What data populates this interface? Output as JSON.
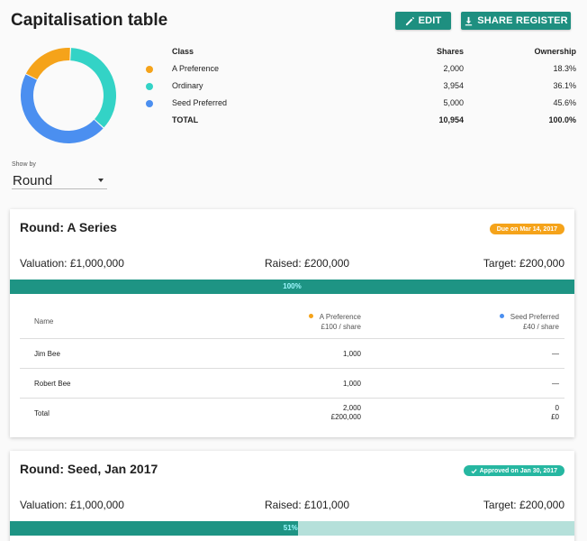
{
  "header": {
    "title": "Capitalisation table",
    "edit_label": "EDIT",
    "share_label": "SHARE REGISTER"
  },
  "cap_table": {
    "headers": {
      "class": "Class",
      "shares": "Shares",
      "ownership": "Ownership"
    },
    "rows": [
      {
        "class": "A Preference",
        "shares": "2,000",
        "ownership": "18.3%",
        "color": "#f5a31a"
      },
      {
        "class": "Ordinary",
        "shares": "3,954",
        "ownership": "36.1%",
        "color": "#33d3c6"
      },
      {
        "class": "Seed Preferred",
        "shares": "5,000",
        "ownership": "45.6%",
        "color": "#4b8ff0"
      }
    ],
    "total": {
      "class": "TOTAL",
      "shares": "10,954",
      "ownership": "100.0%"
    }
  },
  "chart_data": {
    "type": "pie",
    "categories": [
      "A Preference",
      "Ordinary",
      "Seed Preferred"
    ],
    "values": [
      18.3,
      36.1,
      45.6
    ],
    "colors": [
      "#f5a31a",
      "#33d3c6",
      "#4b8ff0"
    ]
  },
  "show_by": {
    "label": "Show by",
    "value": "Round"
  },
  "rounds": [
    {
      "title": "Round: A Series",
      "badge": "Due on Mar 14, 2017",
      "valuation": "Valuation: £1,000,000",
      "raised": "Raised: £200,000",
      "target": "Target: £200,000",
      "progress_label": "100%",
      "progress": 1.0,
      "columns": {
        "name": "Name",
        "a_class": "A Preference",
        "a_price": "£100 / share",
        "b_class": "Seed Preferred",
        "b_price": "£40 / share"
      },
      "investors": [
        {
          "name": "Jim Bee",
          "a": "1,000",
          "b": "—"
        },
        {
          "name": "Robert Bee",
          "a": "1,000",
          "b": "—"
        }
      ],
      "total": {
        "name": "Total",
        "a_shares": "2,000",
        "a_amount": "£200,000",
        "b_shares": "0",
        "b_amount": "£0"
      }
    },
    {
      "title": "Round: Seed, Jan 2017",
      "badge": "Approved on Jan 30, 2017",
      "valuation": "Valuation: £1,000,000",
      "raised": "Raised: £101,000",
      "target": "Target: £200,000",
      "progress_label": "51%",
      "progress": 0.51
    }
  ]
}
